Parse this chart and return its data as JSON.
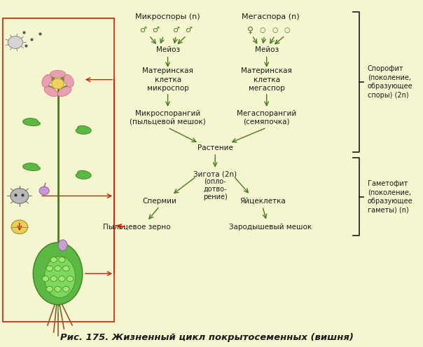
{
  "bg_color": "#f5f5d0",
  "title": "Рис. 175. Жизненный цикл покрытосеменных (вишня)",
  "title_fontsize": 10,
  "text_color": "#1a1a1a",
  "green_color": "#4a7a20",
  "red_color": "#cc2200",
  "arrow_color": "#4a7a20",
  "labels": {
    "microspory": "Микроспоры (n)",
    "megaspora": "Мегаспора (n)",
    "meioz1": "Мейоз",
    "meioz2": "Мейоз",
    "mat_kletka_micro": "Материнская\nклетка\nмикроспор",
    "mat_kletka_mega": "Материнская\nклетка\nмегаспор",
    "microsporangiy": "Микроспорангий\n(пыльцевой мешок)",
    "megasporangiy": "Мегаспорангий\n(семяпочка)",
    "rastenie": "Растение",
    "zigota": "Зигота (2n)",
    "oplo": "(опло-\nдотво-\nрение)",
    "spermii": "Спермии",
    "yaycekletka": "Яйцеклетка",
    "pyl_zerno": "Пыльцевое зерно",
    "zarод_meshok": "Зародышевый мешок",
    "sporofit": "Спорофит\n(поколение,\nобразующее\nспоры) (2n)",
    "gametofit": "Гаметофит\n(поколение,\nобразующее\nгаметы) (n)"
  }
}
